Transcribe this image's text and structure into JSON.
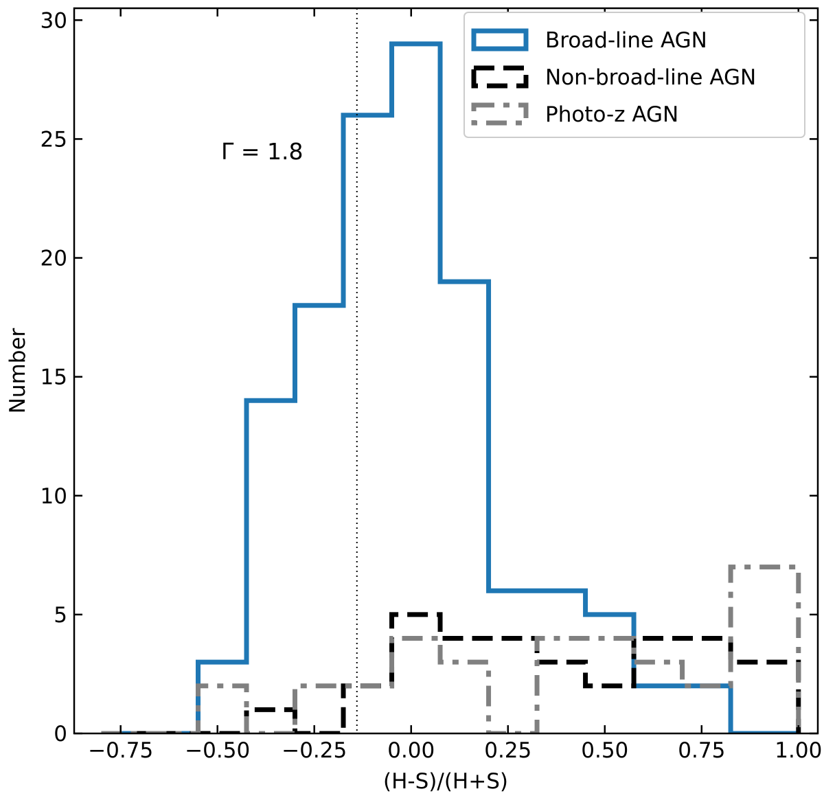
{
  "chart_data": {
    "type": "histogram",
    "title": "",
    "xlabel": "(H-S)/(H+S)",
    "ylabel": "Number",
    "xlim": [
      -0.87,
      1.05
    ],
    "ylim": [
      0,
      30.5
    ],
    "xticks": [
      -0.75,
      -0.5,
      -0.25,
      0.0,
      0.25,
      0.5,
      0.75,
      1.0
    ],
    "xtick_labels": [
      "−0.75",
      "−0.50",
      "−0.25",
      "0.00",
      "0.25",
      "0.50",
      "0.75",
      "1.00"
    ],
    "yticks": [
      0,
      5,
      10,
      15,
      20,
      25,
      30
    ],
    "ytick_labels": [
      "0",
      "5",
      "10",
      "15",
      "20",
      "25",
      "30"
    ],
    "grid": false,
    "legend_position": "top-right",
    "vline_x": -0.14,
    "annotation": "Γ = 1.8",
    "series": [
      {
        "name": "Broad-line AGN",
        "color": "#1f77b4",
        "style": "solid",
        "bin_edges": [
          -0.8,
          -0.675,
          -0.55,
          -0.425,
          -0.3,
          -0.175,
          -0.05,
          0.075,
          0.2,
          0.325,
          0.45,
          0.575,
          0.7,
          0.825,
          1.0
        ],
        "counts": [
          0,
          0,
          3,
          14,
          18,
          26,
          29,
          19,
          6,
          6,
          5,
          2,
          2,
          0
        ]
      },
      {
        "name": "Non-broad-line AGN",
        "color": "#000000",
        "style": "dashed",
        "bin_edges": [
          -0.8,
          -0.675,
          -0.55,
          -0.425,
          -0.3,
          -0.175,
          -0.05,
          0.075,
          0.2,
          0.325,
          0.45,
          0.575,
          0.7,
          0.825,
          1.0
        ],
        "counts": [
          0,
          0,
          0,
          1,
          0,
          2,
          5,
          4,
          4,
          3,
          2,
          4,
          4,
          3
        ]
      },
      {
        "name": "Photo-z AGN",
        "color": "#808080",
        "style": "dashdot",
        "bin_edges": [
          -0.8,
          -0.675,
          -0.55,
          -0.425,
          -0.3,
          -0.175,
          -0.05,
          0.075,
          0.2,
          0.325,
          0.45,
          0.575,
          0.7,
          0.825,
          1.0
        ],
        "counts": [
          0,
          0,
          2,
          0,
          2,
          2,
          4,
          3,
          0,
          4,
          4,
          3,
          2,
          7
        ]
      }
    ]
  }
}
